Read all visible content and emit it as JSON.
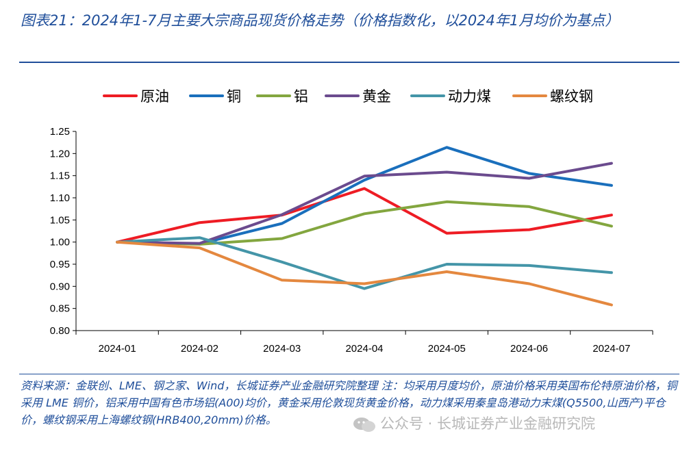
{
  "title": "图表21：2024年1-7月主要大宗商品现货价格走势（价格指数化，以2024年1月均价为基点）",
  "source_note": "资料来源：金联创、LME、钢之家、Wind，长城证券产业金融研究院整理 注：均采用月度均价，原油价格采用英国布伦特原油价格，铜采用 LME 铜价，铝采用中国有色市场铝(A00)均价，黄金采用伦敦现货黄金价格，动力煤采用秦皇岛港动力末煤(Q5500,山西产)平仓价，螺纹钢采用上海螺纹钢(HRB400,20mm)价格。",
  "watermark": "公众号 · 长城证券产业金融研究院",
  "watermark_icon": "wechat-icon",
  "chart_data": {
    "type": "line",
    "categories": [
      "2024-01",
      "2024-02",
      "2024-03",
      "2024-04",
      "2024-05",
      "2024-06",
      "2024-07"
    ],
    "ylim": [
      0.8,
      1.25
    ],
    "yticks": [
      "0.80",
      "0.85",
      "0.90",
      "0.95",
      "1.00",
      "1.05",
      "1.10",
      "1.15",
      "1.20",
      "1.25"
    ],
    "grid": false,
    "legend_position": "top",
    "series": [
      {
        "name": "原油",
        "color": "#ee1c24",
        "values": [
          1.0,
          1.044,
          1.061,
          1.121,
          1.02,
          1.028,
          1.061
        ]
      },
      {
        "name": "铜",
        "color": "#1a6fbc",
        "values": [
          1.0,
          0.996,
          1.042,
          1.14,
          1.214,
          1.155,
          1.128
        ]
      },
      {
        "name": "铝",
        "color": "#83a63f",
        "values": [
          1.0,
          0.995,
          1.008,
          1.064,
          1.091,
          1.08,
          1.036
        ]
      },
      {
        "name": "黄金",
        "color": "#6b4b8e",
        "values": [
          1.0,
          0.997,
          1.062,
          1.149,
          1.158,
          1.144,
          1.178
        ]
      },
      {
        "name": "动力煤",
        "color": "#4495a8",
        "values": [
          1.0,
          1.01,
          0.955,
          0.895,
          0.95,
          0.947,
          0.931
        ]
      },
      {
        "name": "螺纹钢",
        "color": "#e4883f",
        "values": [
          1.0,
          0.987,
          0.914,
          0.906,
          0.933,
          0.906,
          0.858
        ]
      }
    ]
  }
}
